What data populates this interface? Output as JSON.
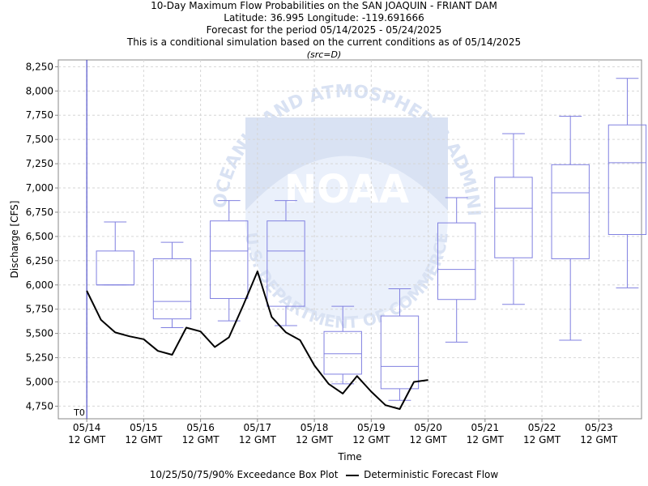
{
  "titles": [
    "10-Day Maximum Flow Probabilities on the SAN JOAQUIN - FRIANT DAM",
    "Latitude: 36.995 Longitude: -119.691666",
    "Forecast for the period 05/14/2025 - 05/24/2025",
    "This is a conditional simulation based on the current conditions as of 05/14/2025"
  ],
  "src_note": "(src=D)",
  "watermark": {
    "ring_text": "NATIONAL OCEANIC AND ATMOSPHERIC ADMINISTRATION",
    "bottom_text": "U.S. DEPARTMENT OF COMMERCE",
    "logo_text": "NOAA"
  },
  "legend": {
    "box_label": "10/25/50/75/90% Exceedance Box Plot",
    "line_label": "Deterministic Forecast Flow"
  },
  "colors": {
    "box": "#8080e0",
    "line": "#000000",
    "grid": "#d6d6d6",
    "t0_line": "#3030c0"
  },
  "chart_data": {
    "type": "box",
    "xlabel": "Time",
    "ylabel": "Discharge [CFS]",
    "ylim": [
      4620,
      8320
    ],
    "yticks": [
      4750,
      5000,
      5250,
      5500,
      5750,
      6000,
      6250,
      6500,
      6750,
      7000,
      7250,
      7500,
      7750,
      8000,
      8250
    ],
    "ytick_labels": [
      "4,750",
      "5,000",
      "5,250",
      "5,500",
      "5,750",
      "6,000",
      "6,250",
      "6,500",
      "6,750",
      "7,000",
      "7,250",
      "7,500",
      "7,750",
      "8,000",
      "8,250"
    ],
    "xlim": [
      -0.5,
      9.75
    ],
    "xticks": [
      0,
      1,
      2,
      3,
      4,
      5,
      6,
      7,
      8,
      9
    ],
    "xtick_labels": [
      [
        "05/14",
        "12 GMT"
      ],
      [
        "05/15",
        "12 GMT"
      ],
      [
        "05/16",
        "12 GMT"
      ],
      [
        "05/17",
        "12 GMT"
      ],
      [
        "05/18",
        "12 GMT"
      ],
      [
        "05/19",
        "12 GMT"
      ],
      [
        "05/20",
        "12 GMT"
      ],
      [
        "05/21",
        "12 GMT"
      ],
      [
        "05/22",
        "12 GMT"
      ],
      [
        "05/23",
        "12 GMT"
      ]
    ],
    "t0": {
      "x": 0,
      "label": "T0"
    },
    "boxes": [
      {
        "x": 0.5,
        "p10": 6000,
        "p25": 6000,
        "p50": 6000,
        "p75": 6350,
        "p90": 6650
      },
      {
        "x": 1.5,
        "p10": 5560,
        "p25": 5650,
        "p50": 5830,
        "p75": 6270,
        "p90": 6440
      },
      {
        "x": 2.5,
        "p10": 5630,
        "p25": 5860,
        "p50": 6350,
        "p75": 6660,
        "p90": 6870
      },
      {
        "x": 3.5,
        "p10": 5580,
        "p25": 5780,
        "p50": 6350,
        "p75": 6660,
        "p90": 6870
      },
      {
        "x": 4.5,
        "p10": 4980,
        "p25": 5080,
        "p50": 5290,
        "p75": 5520,
        "p90": 5780
      },
      {
        "x": 5.5,
        "p10": 4810,
        "p25": 4930,
        "p50": 5160,
        "p75": 5680,
        "p90": 5960
      },
      {
        "x": 6.5,
        "p10": 5410,
        "p25": 5850,
        "p50": 6160,
        "p75": 6640,
        "p90": 6900
      },
      {
        "x": 7.5,
        "p10": 5800,
        "p25": 6280,
        "p50": 6790,
        "p75": 7110,
        "p90": 7560
      },
      {
        "x": 8.5,
        "p10": 5430,
        "p25": 6270,
        "p50": 6950,
        "p75": 7240,
        "p90": 7740
      },
      {
        "x": 9.5,
        "p10": 5970,
        "p25": 6520,
        "p50": 7260,
        "p75": 7650,
        "p90": 8130
      }
    ],
    "deterministic": {
      "x": [
        0,
        0.25,
        0.5,
        0.75,
        1.0,
        1.25,
        1.5,
        1.75,
        2.0,
        2.25,
        2.5,
        2.75,
        3.0,
        3.25,
        3.5,
        3.75,
        4.0,
        4.25,
        4.5,
        4.75,
        5.0,
        5.25,
        5.5,
        5.75,
        6.0
      ],
      "y": [
        5940,
        5640,
        5510,
        5470,
        5440,
        5320,
        5280,
        5560,
        5520,
        5360,
        5460,
        5790,
        6140,
        5670,
        5510,
        5430,
        5170,
        4980,
        4880,
        5060,
        4900,
        4760,
        4720,
        5000,
        5020
      ]
    }
  }
}
